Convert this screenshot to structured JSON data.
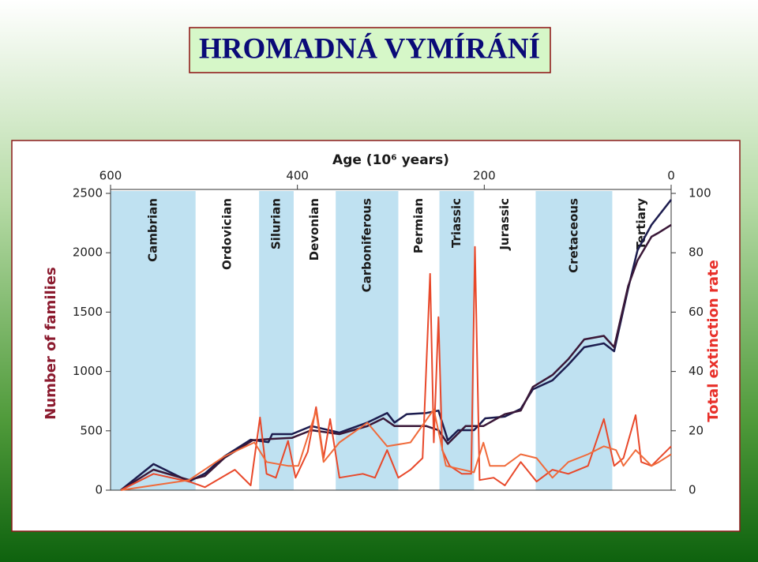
{
  "title": "HROMADNÁ VYMÍRÁNÍ",
  "chart_data": {
    "type": "line",
    "xlabel": "Age (10⁶ years)",
    "ylabel": "Number of families",
    "y2label": "Total extinction rate",
    "xlim": [
      600,
      0
    ],
    "xticks": [
      600,
      400,
      200,
      0
    ],
    "ylim": [
      0,
      2500
    ],
    "yticks": [
      0,
      500,
      1000,
      1500,
      2000,
      2500
    ],
    "y2lim": [
      0,
      100
    ],
    "y2ticks": [
      0,
      20,
      40,
      60,
      80,
      100
    ],
    "periods": [
      {
        "name": "Cambrian",
        "start": 600,
        "end": 509,
        "shaded": true
      },
      {
        "name": "Ordovician",
        "start": 509,
        "end": 441,
        "shaded": false
      },
      {
        "name": "Silurian",
        "start": 441,
        "end": 404,
        "shaded": true
      },
      {
        "name": "Devonian",
        "start": 404,
        "end": 359,
        "shaded": false
      },
      {
        "name": "Carboniferous",
        "start": 359,
        "end": 292,
        "shaded": true
      },
      {
        "name": "Permian",
        "start": 292,
        "end": 248,
        "shaded": false
      },
      {
        "name": "Triassic",
        "start": 248,
        "end": 211,
        "shaded": true
      },
      {
        "name": "Jurassic",
        "start": 211,
        "end": 145,
        "shaded": false
      },
      {
        "name": "Cretaceous",
        "start": 145,
        "end": 63,
        "shaded": true
      },
      {
        "name": "Tertiary",
        "start": 63,
        "end": 0,
        "shaded": false
      }
    ],
    "series": [
      {
        "color": "#1c1c4e",
        "x": [
          589,
          554,
          516,
          499,
          478,
          450,
          431,
          427,
          406,
          385,
          355,
          325,
          304,
          296,
          283,
          262,
          249,
          239,
          228,
          211,
          199,
          178,
          161,
          148,
          127,
          110,
          93,
          72,
          61,
          46,
          36,
          21,
          0
        ],
        "values": [
          0,
          220,
          73,
          140,
          286,
          425,
          405,
          472,
          472,
          540,
          485,
          570,
          650,
          570,
          640,
          650,
          670,
          420,
          505,
          505,
          605,
          620,
          685,
          850,
          925,
          1057,
          1204,
          1237,
          1170,
          1700,
          2020,
          2235,
          2447
        ]
      },
      {
        "color": "#3a1838",
        "x": [
          589,
          554,
          516,
          499,
          478,
          448,
          427,
          406,
          385,
          355,
          325,
          308,
          296,
          262,
          249,
          239,
          220,
          201,
          178,
          161,
          148,
          127,
          110,
          93,
          72,
          61,
          46,
          36,
          21,
          13,
          0
        ],
        "values": [
          0,
          173,
          86,
          120,
          273,
          420,
          432,
          440,
          505,
          472,
          540,
          605,
          540,
          540,
          505,
          390,
          540,
          540,
          640,
          670,
          870,
          970,
          1104,
          1270,
          1300,
          1204,
          1720,
          1935,
          2135,
          2170,
          2235
        ]
      },
      {
        "color": "#e8482a",
        "axis": "y2",
        "x": [
          589,
          554,
          516,
          499,
          467,
          450,
          440,
          433,
          423,
          410,
          402,
          389,
          380,
          372,
          365,
          355,
          330,
          317,
          304,
          292,
          279,
          266,
          258,
          254,
          249,
          245,
          237,
          224,
          214,
          210,
          205,
          190,
          178,
          161,
          144,
          127,
          110,
          89,
          72,
          61,
          51,
          38,
          32,
          21,
          0
        ],
        "values": [
          0,
          5.5,
          2.9,
          1,
          6.9,
          1.6,
          24.5,
          5.5,
          4.2,
          16.6,
          4.2,
          12.9,
          28,
          10.8,
          24,
          4.2,
          5.5,
          4.2,
          13.5,
          4.2,
          6.9,
          10.8,
          72.9,
          16.1,
          58.3,
          13.5,
          8.2,
          5.5,
          5.5,
          82,
          3.4,
          4.2,
          1.6,
          9.5,
          2.9,
          6.9,
          5.5,
          8.2,
          24,
          8.2,
          10.8,
          25.3,
          9.5,
          8.2,
          14.8
        ]
      },
      {
        "color": "#f06a3a",
        "axis": "y2",
        "x": [
          589,
          516,
          478,
          446,
          433,
          410,
          399,
          380,
          372,
          355,
          325,
          304,
          279,
          254,
          241,
          211,
          201,
          194,
          178,
          161,
          144,
          127,
          110,
          89,
          72,
          59,
          51,
          38,
          21,
          13,
          0
        ],
        "values": [
          0,
          3.4,
          11.4,
          16.1,
          9.5,
          8.2,
          8.2,
          26.7,
          9.5,
          16.1,
          22.7,
          14.8,
          16.1,
          27.2,
          8.2,
          6,
          16,
          8.2,
          8.2,
          12.1,
          10.8,
          4.2,
          9.5,
          12.1,
          14.8,
          13.5,
          8.2,
          13.5,
          8.2,
          9.5,
          12.1
        ]
      }
    ]
  }
}
